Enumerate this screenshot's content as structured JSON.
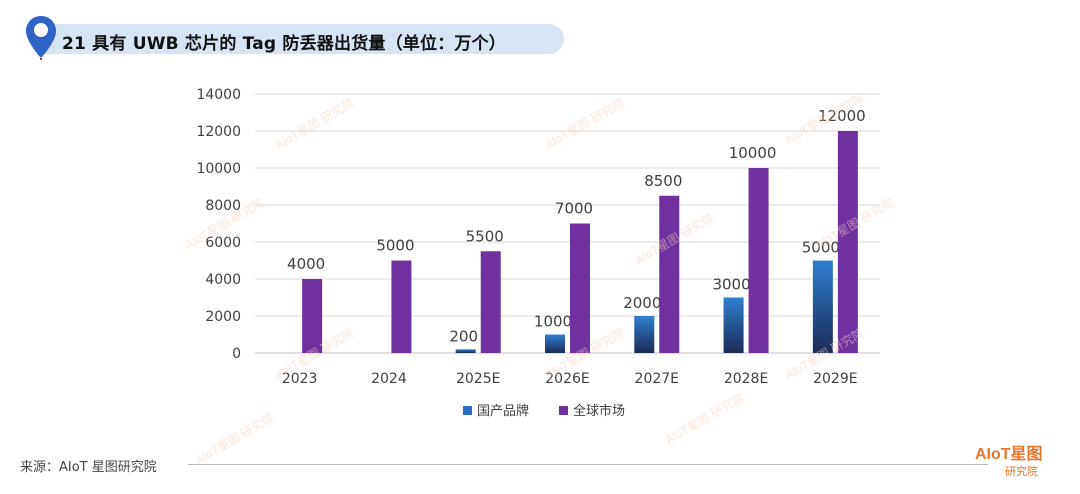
{
  "header": {
    "title": "21 具有 UWB 芯片的 Tag 防丢器出货量（单位：万个）",
    "accent_color": "#2f63c5"
  },
  "footer": {
    "source": "来源：AIoT 星图研究院",
    "brand_logo": "AIoT星图",
    "brand_sub": "研究院"
  },
  "watermark": "AIoT星图 研究院",
  "chart_data": {
    "type": "bar",
    "title": "",
    "xlabel": "",
    "ylabel": "",
    "categories": [
      "2023",
      "2024",
      "2025E",
      "2026E",
      "2027E",
      "2028E",
      "2029E"
    ],
    "series": [
      {
        "name": "国产品牌",
        "color": "#2d6cc0",
        "values": [
          null,
          null,
          200,
          1000,
          2000,
          3000,
          5000
        ],
        "labels": [
          "",
          "",
          "200",
          "1000",
          "2000",
          "3000",
          "5000"
        ]
      },
      {
        "name": "全球市场",
        "color": "#7030a0",
        "values": [
          4000,
          5000,
          5500,
          7000,
          8500,
          10000,
          12000
        ],
        "labels": [
          "4000",
          "5000",
          "5500",
          "7000",
          "8500",
          "10000",
          "12000"
        ]
      }
    ],
    "ylim": [
      0,
      14000
    ],
    "yticks": [
      0,
      2000,
      4000,
      6000,
      8000,
      10000,
      12000,
      14000
    ],
    "grid": true,
    "legend": "bottom"
  }
}
